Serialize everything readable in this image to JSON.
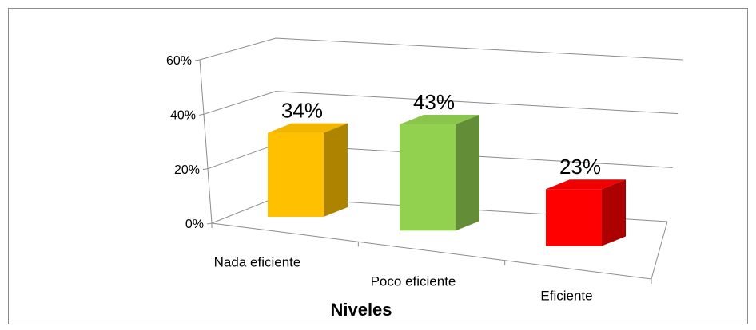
{
  "chart_data": {
    "type": "bar3d",
    "x_label": "Niveles",
    "categories": [
      "Nada eficiente",
      "Poco eficiente",
      "Eficiente"
    ],
    "values": [
      34,
      43,
      23
    ],
    "value_labels": [
      "34%",
      "43%",
      "23%"
    ],
    "colors": [
      "#ffc000",
      "#92d050",
      "#ff0000"
    ],
    "ylim": [
      0,
      60
    ],
    "yticks": [
      {
        "value": 0,
        "label": "0%"
      },
      {
        "value": 20,
        "label": "20%"
      },
      {
        "value": 40,
        "label": "40%"
      },
      {
        "value": 60,
        "label": "60%"
      }
    ],
    "grid": true
  }
}
